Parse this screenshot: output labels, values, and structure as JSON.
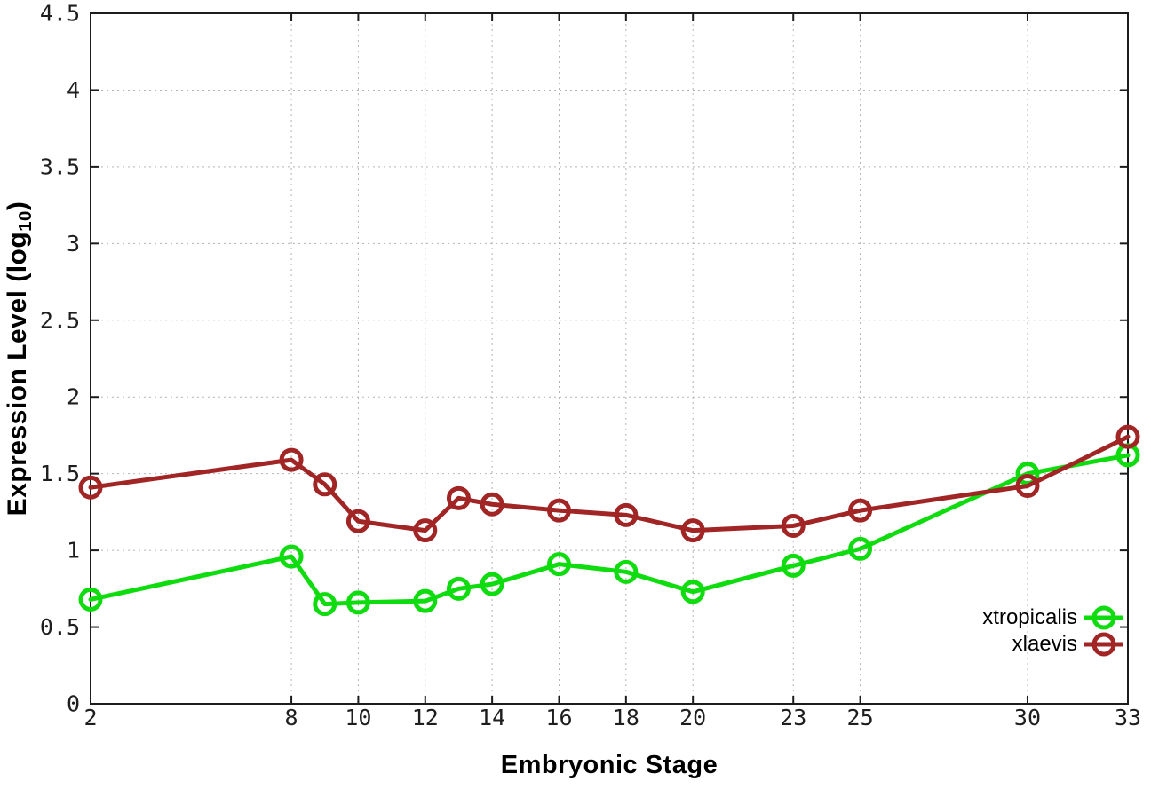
{
  "figure": {
    "background": "#ffffff",
    "border_color": "#1c1c1c",
    "grid_color": "#b3b3b3"
  },
  "axis_titles": {
    "x": "Embryonic Stage",
    "y_prefix": "Expression Level (log",
    "y_sub": "10",
    "y_suffix": ")"
  },
  "chart_data": {
    "type": "line",
    "title": "",
    "xlabel": "Embryonic Stage",
    "ylabel": "Expression Level (log10)",
    "x": [
      2,
      8,
      9,
      10,
      12,
      13,
      14,
      16,
      18,
      20,
      23,
      25,
      30,
      33
    ],
    "series": [
      {
        "name": "xtropicalis",
        "color": "#0fdc0f",
        "values": [
          0.68,
          0.96,
          0.65,
          0.66,
          0.67,
          0.75,
          0.78,
          0.91,
          0.86,
          0.73,
          0.9,
          1.01,
          1.5,
          1.62
        ]
      },
      {
        "name": "xlaevis",
        "color": "#a22525",
        "values": [
          1.41,
          1.59,
          1.43,
          1.19,
          1.13,
          1.34,
          1.3,
          1.26,
          1.23,
          1.13,
          1.16,
          1.26,
          1.42,
          1.74
        ]
      }
    ],
    "xlim": [
      2,
      33
    ],
    "ylim": [
      0,
      4.5
    ],
    "xticks": [
      2,
      8,
      10,
      12,
      14,
      16,
      18,
      20,
      23,
      25,
      30,
      33
    ],
    "xticklabels": [
      "2",
      "8",
      "10",
      "12",
      "14",
      "16",
      "18",
      "20",
      "23",
      "25",
      "30",
      "33"
    ],
    "yticks": [
      0,
      0.5,
      1,
      1.5,
      2,
      2.5,
      3,
      3.5,
      4,
      4.5
    ],
    "yticklabels": [
      "0",
      "0.5",
      "1",
      "1.5",
      "2",
      "2.5",
      "3",
      "3.5",
      "4",
      "4.5"
    ],
    "grid": true,
    "legend_position": "bottom-right-inside",
    "marker": "open-circle"
  }
}
